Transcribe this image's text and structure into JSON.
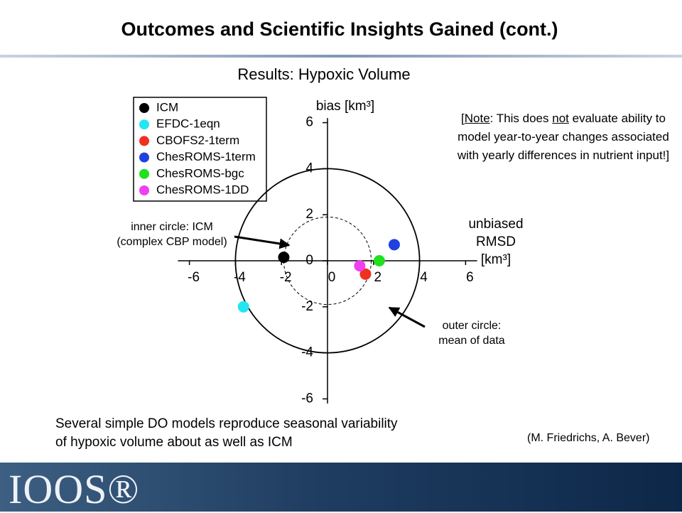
{
  "slide": {
    "title": "Outcomes and Scientific Insights Gained (cont.)",
    "note": [
      "[",
      "Note",
      ": This does ",
      "not",
      " evaluate ability to model year-to-year changes associated with yearly differences in nutrient input!]"
    ],
    "bottom_text": [
      "Several simple DO models reproduce seasonal variability",
      "of hypoxic volume about as well as ICM"
    ],
    "credit": "(M. Friedrichs, A. Bever)",
    "logo": "IOOS®"
  },
  "chart_data": {
    "type": "scatter",
    "title": "Results: Hypoxic Volume",
    "y_label": "bias [km³]",
    "x_label": [
      "unbiased",
      "RMSD",
      "[km³]"
    ],
    "xlim": [
      -6.5,
      6.5
    ],
    "ylim": [
      -6.2,
      6.2
    ],
    "xticks": [
      -6,
      -4,
      -2,
      0,
      2,
      4,
      6
    ],
    "yticks": [
      -6,
      -4,
      -2,
      0,
      2,
      4,
      6
    ],
    "reference_circles": [
      1.9,
      4
    ],
    "annotations": [
      [
        "inner circle: ICM",
        "(complex CBP model)"
      ],
      [
        "outer circle:",
        "mean of data"
      ]
    ],
    "series": [
      {
        "name": "ICM",
        "color": "#000000",
        "x": [
          -1.9
        ],
        "values": [
          0.15
        ]
      },
      {
        "name": "EFDC-1eqn",
        "color": "#22e6f0",
        "x": [
          -3.65
        ],
        "values": [
          -2.0
        ]
      },
      {
        "name": "CBOFS2-1term",
        "color": "#f03020",
        "x": [
          1.65
        ],
        "values": [
          -0.58
        ]
      },
      {
        "name": "ChesROMS-1term",
        "color": "#2040e0",
        "x": [
          2.9
        ],
        "values": [
          0.7
        ]
      },
      {
        "name": "ChesROMS-bgc",
        "color": "#20e020",
        "x": [
          2.25
        ],
        "values": [
          0.0
        ]
      },
      {
        "name": "ChesROMS-1DD",
        "color": "#f040f0",
        "x": [
          1.4
        ],
        "values": [
          -0.22
        ]
      }
    ]
  }
}
